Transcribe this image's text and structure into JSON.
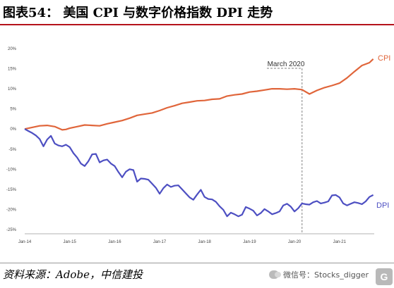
{
  "figure": {
    "title": "图表54： 美国 CPI 与数字价格指数 DPI 走势",
    "source": "资料来源：Adobe，中信建投",
    "watermark": "微信号：Stocks_digger",
    "logo_text": "G",
    "logo_icon": "gelonghui-logo-icon",
    "watermark_icon": "wechat-icon"
  },
  "chart_data": {
    "type": "line",
    "x_labels": [
      "Jan-14",
      "Jan-15",
      "Jan-16",
      "Jan-17",
      "Jan-18",
      "Jan-19",
      "Jan-20",
      "Jan-21"
    ],
    "y_ticks": [
      "20%",
      "15%",
      "10%",
      "5%",
      "0%",
      "-5%",
      "-10%",
      "-15%",
      "-20%",
      "-25%"
    ],
    "y_range": [
      -25,
      20
    ],
    "grid": false,
    "annotation": {
      "label": "March 2020",
      "x": 74
    },
    "series": [
      {
        "name": "CPI",
        "color": "#e0653a",
        "x": [
          0,
          2,
          4,
          6,
          8,
          10,
          11,
          12,
          13,
          14,
          16,
          18,
          20,
          22,
          24,
          26,
          28,
          30,
          32,
          34,
          36,
          38,
          40,
          42,
          44,
          46,
          48,
          50,
          52,
          54,
          56,
          58,
          60,
          62,
          64,
          66,
          68,
          70,
          72,
          74,
          76,
          78,
          80,
          82,
          84,
          86,
          88,
          90,
          92,
          93
        ],
        "y": [
          0,
          0.4,
          0.8,
          0.9,
          0.6,
          -0.2,
          -0.1,
          0.2,
          0.4,
          0.6,
          1.0,
          0.9,
          0.8,
          1.3,
          1.7,
          2.1,
          2.7,
          3.4,
          3.7,
          4.0,
          4.6,
          5.3,
          5.8,
          6.4,
          6.7,
          7.0,
          7.1,
          7.4,
          7.5,
          8.2,
          8.5,
          8.7,
          9.2,
          9.4,
          9.7,
          10.0,
          10.0,
          9.9,
          10.0,
          9.8,
          8.7,
          9.6,
          10.3,
          10.8,
          11.4,
          12.7,
          14.3,
          15.8,
          16.5,
          17.4
        ]
      },
      {
        "name": "DPI",
        "color": "#4d4fc2",
        "x": [
          0,
          1,
          2,
          3,
          4,
          5,
          6,
          7,
          8,
          9,
          10,
          11,
          12,
          13,
          14,
          15,
          16,
          17,
          18,
          19,
          20,
          21,
          22,
          23,
          24,
          25,
          26,
          27,
          28,
          29,
          30,
          31,
          32,
          33,
          34,
          35,
          36,
          37,
          38,
          39,
          40,
          41,
          42,
          43,
          44,
          45,
          46,
          47,
          48,
          49,
          50,
          51,
          52,
          53,
          54,
          55,
          56,
          57,
          58,
          59,
          60,
          61,
          62,
          63,
          64,
          65,
          66,
          67,
          68,
          69,
          70,
          71,
          72,
          73,
          74,
          75,
          76,
          77,
          78,
          79,
          80,
          81,
          82,
          83,
          84,
          85,
          86,
          87,
          88,
          89,
          90,
          91,
          92,
          93
        ],
        "y": [
          0,
          -0.5,
          -1.0,
          -1.6,
          -2.5,
          -4.3,
          -2.6,
          -1.7,
          -3.6,
          -4.1,
          -4.3,
          -3.9,
          -4.5,
          -6.0,
          -7.1,
          -8.6,
          -9.2,
          -8.0,
          -6.3,
          -6.2,
          -8.3,
          -7.8,
          -7.6,
          -8.6,
          -9.2,
          -10.7,
          -12.0,
          -10.6,
          -10.0,
          -10.2,
          -13.1,
          -12.3,
          -12.4,
          -12.6,
          -13.6,
          -14.6,
          -16.1,
          -14.7,
          -13.8,
          -14.4,
          -14.1,
          -14.0,
          -15.0,
          -16.0,
          -17.0,
          -17.6,
          -16.3,
          -15.1,
          -16.9,
          -17.4,
          -17.5,
          -18.1,
          -19.2,
          -20.1,
          -21.7,
          -20.8,
          -21.2,
          -21.7,
          -21.3,
          -19.4,
          -19.8,
          -20.3,
          -21.5,
          -20.9,
          -19.9,
          -20.5,
          -21.2,
          -20.9,
          -20.5,
          -19.0,
          -18.6,
          -19.3,
          -20.5,
          -19.7,
          -18.5,
          -18.7,
          -18.8,
          -18.2,
          -17.9,
          -18.5,
          -18.3,
          -18.0,
          -16.5,
          -16.4,
          -17.0,
          -18.5,
          -19.0,
          -18.6,
          -18.2,
          -18.4,
          -18.7,
          -18.0,
          -16.9,
          -16.4
        ]
      }
    ]
  }
}
